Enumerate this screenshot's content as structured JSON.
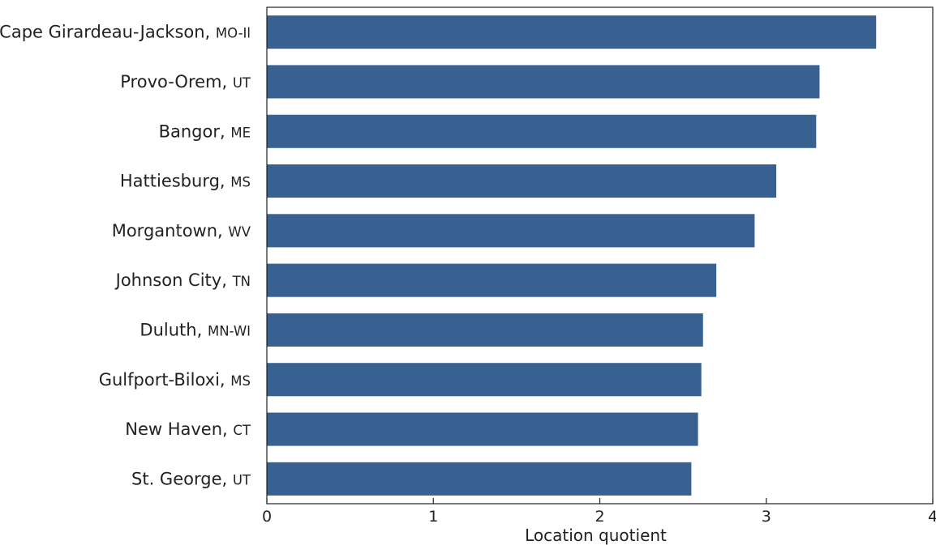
{
  "chart_data": {
    "type": "bar",
    "orientation": "horizontal",
    "categories": [
      {
        "name": "Cape Girardeau-Jackson,",
        "state": "MO-Il"
      },
      {
        "name": "Provo-Orem,",
        "state": "UT"
      },
      {
        "name": "Bangor,",
        "state": "ME"
      },
      {
        "name": "Hattiesburg,",
        "state": "MS"
      },
      {
        "name": "Morgantown,",
        "state": "WV"
      },
      {
        "name": "Johnson City,",
        "state": "TN"
      },
      {
        "name": "Duluth,",
        "state": "MN-WI"
      },
      {
        "name": "Gulfport-Biloxi,",
        "state": "MS"
      },
      {
        "name": "New Haven,",
        "state": "CT"
      },
      {
        "name": "St. George,",
        "state": "UT"
      }
    ],
    "values": [
      3.66,
      3.32,
      3.3,
      3.06,
      2.93,
      2.7,
      2.62,
      2.61,
      2.59,
      2.55
    ],
    "xlabel": "Location quotient",
    "ylabel": "",
    "title": "",
    "xlim": [
      0,
      4
    ],
    "xticks": [
      "0",
      "1",
      "2",
      "3",
      "4"
    ],
    "grid": false,
    "bar_color": "#386192"
  }
}
